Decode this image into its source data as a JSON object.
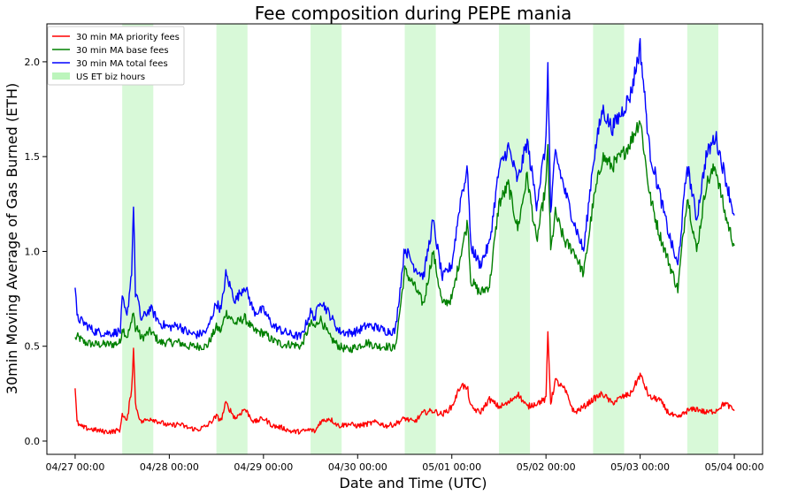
{
  "chart_data": {
    "type": "line",
    "title": "Fee composition during PEPE mania",
    "xlabel": "Date and Time (UTC)",
    "ylabel": "30min Moving Average of Gas Burned (ETH)",
    "x_unit": "days since 04/27 00:00 UTC",
    "xlim": [
      -0.3,
      7.3
    ],
    "ylim": [
      -0.07,
      2.2
    ],
    "x_ticks": [
      {
        "x": 0,
        "label": "04/27 00:00"
      },
      {
        "x": 1,
        "label": "04/28 00:00"
      },
      {
        "x": 2,
        "label": "04/29 00:00"
      },
      {
        "x": 3,
        "label": "04/30 00:00"
      },
      {
        "x": 4,
        "label": "05/01 00:00"
      },
      {
        "x": 5,
        "label": "05/02 00:00"
      },
      {
        "x": 6,
        "label": "05/03 00:00"
      },
      {
        "x": 7,
        "label": "05/04 00:00"
      }
    ],
    "y_ticks": [
      {
        "y": 0.0,
        "label": "0.0"
      },
      {
        "y": 0.5,
        "label": "0.5"
      },
      {
        "y": 1.0,
        "label": "1.0"
      },
      {
        "y": 1.5,
        "label": "1.5"
      },
      {
        "y": 2.0,
        "label": "2.0"
      }
    ],
    "shaded_regions": {
      "name": "US ET biz hours",
      "color": "#90ee90",
      "spans": [
        [
          0.5,
          0.83
        ],
        [
          1.5,
          1.83
        ],
        [
          2.5,
          2.83
        ],
        [
          3.5,
          3.83
        ],
        [
          4.5,
          4.83
        ],
        [
          5.5,
          5.83
        ],
        [
          6.5,
          6.83
        ]
      ]
    },
    "legend_position": "upper left",
    "series": [
      {
        "name": "30 min MA priority fees",
        "color": "#ff0000",
        "x": [
          0.0,
          0.02,
          0.05,
          0.1,
          0.2,
          0.3,
          0.4,
          0.48,
          0.5,
          0.55,
          0.6,
          0.62,
          0.64,
          0.66,
          0.7,
          0.8,
          0.9,
          1.0,
          1.1,
          1.2,
          1.3,
          1.4,
          1.5,
          1.55,
          1.6,
          1.7,
          1.8,
          1.9,
          2.0,
          2.1,
          2.2,
          2.3,
          2.4,
          2.5,
          2.55,
          2.6,
          2.7,
          2.8,
          2.9,
          3.0,
          3.1,
          3.2,
          3.3,
          3.4,
          3.5,
          3.6,
          3.7,
          3.8,
          3.9,
          4.0,
          4.1,
          4.17,
          4.2,
          4.3,
          4.4,
          4.5,
          4.6,
          4.7,
          4.8,
          4.9,
          5.0,
          5.02,
          5.05,
          5.1,
          5.2,
          5.3,
          5.4,
          5.5,
          5.6,
          5.7,
          5.8,
          5.9,
          6.0,
          6.1,
          6.2,
          6.3,
          6.4,
          6.5,
          6.6,
          6.7,
          6.8,
          6.9,
          7.0
        ],
        "values": [
          0.27,
          0.1,
          0.08,
          0.07,
          0.06,
          0.05,
          0.05,
          0.06,
          0.15,
          0.1,
          0.28,
          0.49,
          0.2,
          0.16,
          0.1,
          0.12,
          0.1,
          0.08,
          0.09,
          0.07,
          0.06,
          0.08,
          0.13,
          0.11,
          0.2,
          0.12,
          0.17,
          0.1,
          0.12,
          0.08,
          0.07,
          0.05,
          0.05,
          0.06,
          0.05,
          0.1,
          0.12,
          0.08,
          0.09,
          0.08,
          0.09,
          0.1,
          0.08,
          0.09,
          0.12,
          0.1,
          0.15,
          0.16,
          0.14,
          0.18,
          0.3,
          0.27,
          0.18,
          0.15,
          0.22,
          0.18,
          0.2,
          0.25,
          0.18,
          0.2,
          0.22,
          0.57,
          0.2,
          0.32,
          0.27,
          0.15,
          0.18,
          0.22,
          0.25,
          0.2,
          0.23,
          0.25,
          0.35,
          0.23,
          0.22,
          0.15,
          0.12,
          0.16,
          0.17,
          0.15,
          0.16,
          0.2,
          0.16
        ]
      },
      {
        "name": "30 min MA base fees",
        "color": "#008000",
        "x": [
          0.0,
          0.02,
          0.05,
          0.1,
          0.2,
          0.3,
          0.4,
          0.48,
          0.5,
          0.55,
          0.6,
          0.62,
          0.64,
          0.66,
          0.7,
          0.8,
          0.9,
          1.0,
          1.1,
          1.2,
          1.3,
          1.4,
          1.5,
          1.55,
          1.6,
          1.7,
          1.8,
          1.9,
          2.0,
          2.1,
          2.2,
          2.3,
          2.4,
          2.5,
          2.55,
          2.6,
          2.7,
          2.8,
          2.9,
          3.0,
          3.1,
          3.2,
          3.3,
          3.4,
          3.5,
          3.6,
          3.7,
          3.8,
          3.9,
          4.0,
          4.1,
          4.17,
          4.2,
          4.3,
          4.4,
          4.5,
          4.6,
          4.7,
          4.8,
          4.9,
          5.0,
          5.02,
          5.05,
          5.1,
          5.2,
          5.3,
          5.4,
          5.5,
          5.6,
          5.7,
          5.8,
          5.9,
          6.0,
          6.1,
          6.2,
          6.3,
          6.4,
          6.5,
          6.6,
          6.7,
          6.8,
          6.9,
          7.0
        ],
        "values": [
          0.54,
          0.55,
          0.54,
          0.52,
          0.51,
          0.51,
          0.51,
          0.52,
          0.6,
          0.55,
          0.62,
          0.7,
          0.58,
          0.6,
          0.54,
          0.58,
          0.52,
          0.52,
          0.52,
          0.5,
          0.5,
          0.5,
          0.6,
          0.58,
          0.68,
          0.62,
          0.65,
          0.58,
          0.57,
          0.53,
          0.51,
          0.51,
          0.5,
          0.62,
          0.6,
          0.65,
          0.55,
          0.5,
          0.48,
          0.5,
          0.52,
          0.5,
          0.5,
          0.49,
          0.9,
          0.82,
          0.72,
          1.0,
          0.72,
          0.75,
          1.0,
          1.16,
          0.85,
          0.78,
          0.82,
          1.25,
          1.35,
          1.12,
          1.4,
          1.05,
          1.35,
          1.55,
          1.0,
          1.2,
          1.05,
          1.0,
          0.88,
          1.25,
          1.5,
          1.45,
          1.5,
          1.58,
          1.7,
          1.3,
          1.1,
          0.95,
          0.8,
          1.3,
          1.0,
          1.35,
          1.45,
          1.2,
          1.03
        ]
      },
      {
        "name": "30 min MA total fees",
        "color": "#0000ff",
        "x": [
          0.0,
          0.02,
          0.05,
          0.1,
          0.2,
          0.3,
          0.4,
          0.48,
          0.5,
          0.55,
          0.6,
          0.62,
          0.64,
          0.66,
          0.7,
          0.8,
          0.9,
          1.0,
          1.1,
          1.2,
          1.3,
          1.4,
          1.5,
          1.55,
          1.6,
          1.7,
          1.8,
          1.9,
          2.0,
          2.1,
          2.2,
          2.3,
          2.4,
          2.5,
          2.55,
          2.6,
          2.7,
          2.8,
          2.9,
          3.0,
          3.1,
          3.2,
          3.3,
          3.4,
          3.5,
          3.6,
          3.7,
          3.8,
          3.9,
          4.0,
          4.1,
          4.17,
          4.2,
          4.3,
          4.4,
          4.5,
          4.6,
          4.7,
          4.8,
          4.9,
          5.0,
          5.02,
          5.05,
          5.1,
          5.2,
          5.3,
          5.4,
          5.5,
          5.6,
          5.7,
          5.8,
          5.9,
          6.0,
          6.1,
          6.2,
          6.3,
          6.4,
          6.5,
          6.6,
          6.7,
          6.8,
          6.9,
          7.0
        ],
        "values": [
          0.82,
          0.65,
          0.64,
          0.62,
          0.58,
          0.57,
          0.57,
          0.58,
          0.75,
          0.65,
          0.9,
          1.25,
          0.78,
          0.76,
          0.64,
          0.7,
          0.62,
          0.6,
          0.61,
          0.57,
          0.56,
          0.58,
          0.73,
          0.69,
          0.88,
          0.74,
          0.82,
          0.68,
          0.69,
          0.61,
          0.58,
          0.56,
          0.55,
          0.68,
          0.65,
          0.75,
          0.67,
          0.58,
          0.57,
          0.58,
          0.61,
          0.6,
          0.58,
          0.58,
          1.02,
          0.92,
          0.87,
          1.16,
          0.86,
          0.93,
          1.3,
          1.43,
          1.03,
          0.93,
          1.04,
          1.43,
          1.55,
          1.37,
          1.58,
          1.25,
          1.57,
          2.0,
          1.2,
          1.52,
          1.32,
          1.15,
          1.0,
          1.47,
          1.75,
          1.65,
          1.73,
          1.83,
          2.08,
          1.53,
          1.32,
          1.1,
          0.92,
          1.46,
          1.17,
          1.5,
          1.61,
          1.4,
          1.19
        ]
      }
    ]
  }
}
